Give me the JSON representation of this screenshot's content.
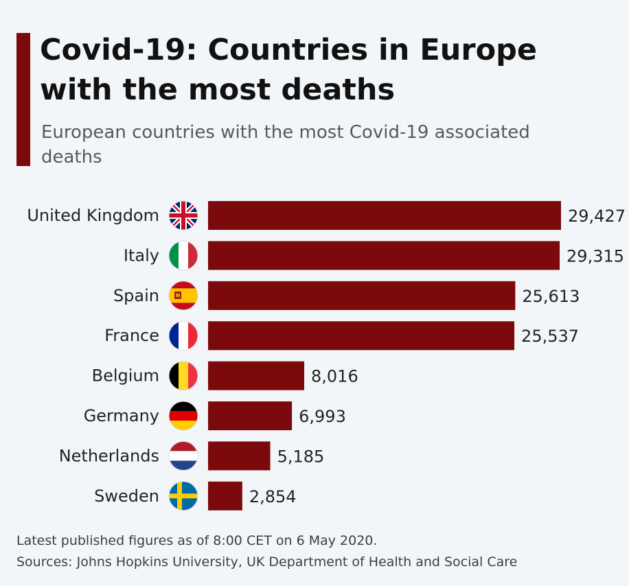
{
  "colors": {
    "accent": "#7c0a0c",
    "bar": "#7c0a0c",
    "background": "#f3f6f9"
  },
  "header": {
    "title": "Covid-19: Countries in Europe with the most deaths",
    "subtitle": "European countries with the most Covid-19 associated deaths"
  },
  "footer": {
    "note": "Latest published figures as of 8:00 CET on 6 May 2020.",
    "sources": "Sources: Johns Hopkins University, UK Department of Health and Social Care"
  },
  "chart_data": {
    "type": "bar",
    "orientation": "horizontal",
    "categories": [
      "United Kingdom",
      "Italy",
      "Spain",
      "France",
      "Belgium",
      "Germany",
      "Netherlands",
      "Sweden"
    ],
    "values": [
      29427,
      29315,
      25613,
      25537,
      8016,
      6993,
      5185,
      2854
    ],
    "value_labels": [
      "29,427",
      "29,315",
      "25,613",
      "25,537",
      "8,016",
      "6,993",
      "5,185",
      "2,854"
    ],
    "flag_icons": [
      "uk-flag-icon",
      "italy-flag-icon",
      "spain-flag-icon",
      "france-flag-icon",
      "belgium-flag-icon",
      "germany-flag-icon",
      "netherlands-flag-icon",
      "sweden-flag-icon"
    ],
    "title": "",
    "xlabel": "",
    "ylabel": "",
    "xlim": [
      0,
      29427
    ],
    "grid": false,
    "legend": "none"
  }
}
